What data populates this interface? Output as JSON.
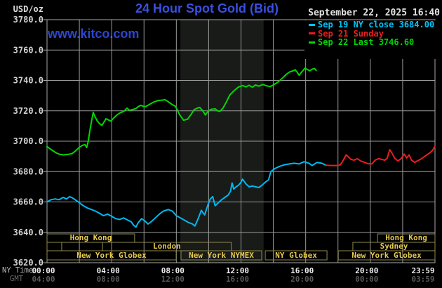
{
  "header": {
    "unit_label": "USD/oz",
    "title": "24 Hour Spot Gold (Bid)",
    "datetime": "September 22, 2025 16:40",
    "watermark": "www.kitco.com"
  },
  "legend": [
    {
      "label": "Sep 19 NY close 3684.00",
      "color": "#00c4fa"
    },
    {
      "label": "Sep 21 Sunday",
      "color": "#ef1c1c"
    },
    {
      "label": "Sep 22 Last 3746.60",
      "color": "#00d800"
    }
  ],
  "axes": {
    "y_ticks": [
      {
        "v": 3780,
        "label": "3780.0"
      },
      {
        "v": 3760,
        "label": "3760.0"
      },
      {
        "v": 3740,
        "label": "3740.0"
      },
      {
        "v": 3720,
        "label": "3720.0"
      },
      {
        "v": 3700,
        "label": "3700.0"
      },
      {
        "v": 3680,
        "label": "3680.0"
      },
      {
        "v": 3660,
        "label": "3660.0"
      },
      {
        "v": 3640,
        "label": "3640.0"
      },
      {
        "v": 3620,
        "label": "3620.0"
      }
    ],
    "x_ny": {
      "row_label": "NY Time",
      "ticks": [
        {
          "h": 0,
          "label": "00:00"
        },
        {
          "h": 4,
          "label": "04:00"
        },
        {
          "h": 8,
          "label": "08:00"
        },
        {
          "h": 12,
          "label": "12:00"
        },
        {
          "h": 16,
          "label": "16:00"
        },
        {
          "h": 20,
          "label": "20:00"
        },
        {
          "h": 24,
          "label": "23:59"
        }
      ]
    },
    "x_gmt": {
      "row_label": "GMT",
      "ticks": [
        {
          "h": 0,
          "label": "04:00"
        },
        {
          "h": 4,
          "label": "08:00"
        },
        {
          "h": 8,
          "label": "12:00"
        },
        {
          "h": 12,
          "label": "16:00"
        },
        {
          "h": 16,
          "label": "20:00"
        },
        {
          "h": 20,
          "label": "00:00"
        },
        {
          "h": 24,
          "label": "03:59"
        }
      ]
    }
  },
  "sessions": [
    {
      "row": 1,
      "h1": 0,
      "h2": 5.42,
      "label": "Hong Kong"
    },
    {
      "row": 1,
      "h1": 20.45,
      "h2": 24,
      "label": "Hong Kong"
    },
    {
      "row": 2,
      "h1": 0,
      "h2": 0.91,
      "label": ""
    },
    {
      "row": 2,
      "h1": 0.91,
      "h2": 3.43,
      "label": ""
    },
    {
      "row": 2,
      "h1": 3.43,
      "h2": 11.4,
      "label": "London"
    },
    {
      "row": 2,
      "h1": 18.92,
      "h2": 24,
      "label": "Sydney"
    },
    {
      "row": 3,
      "h1": 0,
      "h2": 7.99,
      "label": "New York Globex"
    },
    {
      "row": 3,
      "h1": 8.29,
      "h2": 13.28,
      "label": "New York NYMEX"
    },
    {
      "row": 3,
      "h1": 13.5,
      "h2": 17.32,
      "label": "NY Globex"
    },
    {
      "row": 3,
      "h1": 18.02,
      "h2": 24,
      "label": "New York Globex"
    }
  ],
  "chart_data": {
    "type": "line",
    "title": "24 Hour Spot Gold (Bid)",
    "ylabel": "USD/oz",
    "xlabel": "NY Time (hours)",
    "xlim": [
      0,
      24
    ],
    "ylim": [
      3620,
      3780
    ],
    "y_grid_step": 20,
    "x_grid_step_hours": 2,
    "grid": true,
    "nymex_band_hours": [
      8.25,
      13.4
    ],
    "colors": {
      "grid": "#9a9a9a",
      "band": "#191b19",
      "session_border": "#8f8a4c",
      "session_text": "#e6c94f",
      "tick_text": "#d2d2d2"
    },
    "series": [
      {
        "name": "Sep 19 NY close",
        "color": "#00b8f0",
        "points": [
          [
            0,
            3660
          ],
          [
            0.25,
            3661.5
          ],
          [
            0.5,
            3662
          ],
          [
            0.75,
            3661.5
          ],
          [
            1.0,
            3663
          ],
          [
            1.2,
            3662
          ],
          [
            1.4,
            3663.5
          ],
          [
            1.6,
            3662.5
          ],
          [
            1.8,
            3661
          ],
          [
            2.0,
            3659.5
          ],
          [
            2.25,
            3657.5
          ],
          [
            2.5,
            3656
          ],
          [
            2.75,
            3655
          ],
          [
            3.0,
            3654
          ],
          [
            3.25,
            3652.5
          ],
          [
            3.5,
            3651
          ],
          [
            3.75,
            3652
          ],
          [
            4.0,
            3650.5
          ],
          [
            4.25,
            3649
          ],
          [
            4.5,
            3648.5
          ],
          [
            4.75,
            3649.5
          ],
          [
            5.0,
            3648
          ],
          [
            5.2,
            3647
          ],
          [
            5.35,
            3644.8
          ],
          [
            5.5,
            3643.5
          ],
          [
            5.65,
            3646.5
          ],
          [
            5.85,
            3649
          ],
          [
            6.05,
            3647.5
          ],
          [
            6.25,
            3645.5
          ],
          [
            6.45,
            3647
          ],
          [
            6.7,
            3649.5
          ],
          [
            6.95,
            3652
          ],
          [
            7.2,
            3654
          ],
          [
            7.5,
            3655
          ],
          [
            7.75,
            3654
          ],
          [
            8.0,
            3651
          ],
          [
            8.25,
            3649.5
          ],
          [
            8.5,
            3648
          ],
          [
            8.75,
            3646.5
          ],
          [
            9.0,
            3645.5
          ],
          [
            9.15,
            3644.2
          ],
          [
            9.35,
            3649
          ],
          [
            9.55,
            3654.5
          ],
          [
            9.75,
            3651.5
          ],
          [
            9.95,
            3658
          ],
          [
            10.1,
            3662
          ],
          [
            10.25,
            3663.5
          ],
          [
            10.4,
            3657.5
          ],
          [
            10.6,
            3659.5
          ],
          [
            10.8,
            3661.5
          ],
          [
            11.0,
            3663
          ],
          [
            11.2,
            3664.5
          ],
          [
            11.35,
            3667
          ],
          [
            11.45,
            3672.5
          ],
          [
            11.55,
            3668.5
          ],
          [
            11.7,
            3670
          ],
          [
            11.85,
            3671
          ],
          [
            12.0,
            3673
          ],
          [
            12.1,
            3675
          ],
          [
            12.3,
            3672
          ],
          [
            12.5,
            3670
          ],
          [
            12.7,
            3670.5
          ],
          [
            12.9,
            3670
          ],
          [
            13.1,
            3669.5
          ],
          [
            13.3,
            3671
          ],
          [
            13.5,
            3673
          ],
          [
            13.7,
            3674.5
          ],
          [
            13.85,
            3680
          ],
          [
            14.1,
            3682
          ],
          [
            14.4,
            3683.5
          ],
          [
            14.7,
            3684.5
          ],
          [
            15.0,
            3685
          ],
          [
            15.3,
            3685.5
          ],
          [
            15.6,
            3685
          ],
          [
            15.9,
            3686.5
          ],
          [
            16.2,
            3685.5
          ],
          [
            16.4,
            3684
          ],
          [
            16.7,
            3686
          ],
          [
            17.0,
            3685.5
          ],
          [
            17.25,
            3684.2
          ]
        ]
      },
      {
        "name": "Sep 21 Sunday",
        "color": "#ef1c1c",
        "points": [
          [
            17.25,
            3684.2
          ],
          [
            17.6,
            3684
          ],
          [
            18.0,
            3684
          ],
          [
            18.15,
            3684.5
          ],
          [
            18.3,
            3687
          ],
          [
            18.5,
            3691
          ],
          [
            18.65,
            3689.5
          ],
          [
            18.8,
            3688
          ],
          [
            19.0,
            3687.5
          ],
          [
            19.2,
            3688.5
          ],
          [
            19.4,
            3687
          ],
          [
            19.6,
            3686.2
          ],
          [
            19.85,
            3685.2
          ],
          [
            20.1,
            3685
          ],
          [
            20.3,
            3687.5
          ],
          [
            20.5,
            3688.5
          ],
          [
            20.7,
            3688
          ],
          [
            20.9,
            3687.5
          ],
          [
            21.05,
            3689
          ],
          [
            21.2,
            3694.5
          ],
          [
            21.35,
            3692
          ],
          [
            21.5,
            3689
          ],
          [
            21.7,
            3687
          ],
          [
            21.9,
            3688.5
          ],
          [
            22.1,
            3691.5
          ],
          [
            22.25,
            3689
          ],
          [
            22.4,
            3691
          ],
          [
            22.55,
            3687.5
          ],
          [
            22.75,
            3686
          ],
          [
            22.9,
            3687
          ],
          [
            23.1,
            3688
          ],
          [
            23.3,
            3689.5
          ],
          [
            23.5,
            3691
          ],
          [
            23.7,
            3692.5
          ],
          [
            23.85,
            3694
          ],
          [
            23.98,
            3696.3
          ]
        ]
      },
      {
        "name": "Sep 22 Last",
        "color": "#00d800",
        "points": [
          [
            0,
            3696.5
          ],
          [
            0.25,
            3694.5
          ],
          [
            0.55,
            3692.4
          ],
          [
            0.8,
            3691.3
          ],
          [
            1.0,
            3691
          ],
          [
            1.3,
            3691.3
          ],
          [
            1.55,
            3691.8
          ],
          [
            1.75,
            3693.5
          ],
          [
            2.0,
            3696
          ],
          [
            2.2,
            3697.3
          ],
          [
            2.35,
            3697.8
          ],
          [
            2.45,
            3695.8
          ],
          [
            2.55,
            3700
          ],
          [
            2.65,
            3707
          ],
          [
            2.75,
            3713
          ],
          [
            2.86,
            3719
          ],
          [
            2.95,
            3716.5
          ],
          [
            3.1,
            3713.5
          ],
          [
            3.25,
            3711.5
          ],
          [
            3.4,
            3710.4
          ],
          [
            3.55,
            3713
          ],
          [
            3.65,
            3714.8
          ],
          [
            3.8,
            3714
          ],
          [
            3.95,
            3713.2
          ],
          [
            4.15,
            3715.5
          ],
          [
            4.35,
            3717.5
          ],
          [
            4.55,
            3718.8
          ],
          [
            4.75,
            3719.6
          ],
          [
            4.95,
            3721.8
          ],
          [
            5.1,
            3720.3
          ],
          [
            5.3,
            3720.8
          ],
          [
            5.5,
            3721.5
          ],
          [
            5.65,
            3722.8
          ],
          [
            5.8,
            3723.6
          ],
          [
            5.95,
            3723
          ],
          [
            6.1,
            3722.8
          ],
          [
            6.3,
            3724
          ],
          [
            6.5,
            3725.2
          ],
          [
            6.65,
            3726
          ],
          [
            6.9,
            3726.8
          ],
          [
            7.1,
            3727
          ],
          [
            7.3,
            3727.3
          ],
          [
            7.5,
            3726
          ],
          [
            7.7,
            3724.4
          ],
          [
            7.95,
            3722.9
          ],
          [
            8.2,
            3717.5
          ],
          [
            8.45,
            3713.8
          ],
          [
            8.7,
            3714.5
          ],
          [
            8.9,
            3717.5
          ],
          [
            9.1,
            3720.7
          ],
          [
            9.3,
            3721.8
          ],
          [
            9.45,
            3722.2
          ],
          [
            9.6,
            3720.5
          ],
          [
            9.8,
            3717.3
          ],
          [
            9.95,
            3719.5
          ],
          [
            10.15,
            3721
          ],
          [
            10.4,
            3721.3
          ],
          [
            10.55,
            3720
          ],
          [
            10.7,
            3719.6
          ],
          [
            10.9,
            3722
          ],
          [
            11.1,
            3726
          ],
          [
            11.3,
            3730.3
          ],
          [
            11.55,
            3733
          ],
          [
            11.85,
            3735.7
          ],
          [
            12.1,
            3736.6
          ],
          [
            12.3,
            3735.8
          ],
          [
            12.5,
            3736.8
          ],
          [
            12.7,
            3735.5
          ],
          [
            12.9,
            3737
          ],
          [
            13.1,
            3736.2
          ],
          [
            13.35,
            3737.3
          ],
          [
            13.6,
            3736.4
          ],
          [
            13.8,
            3736
          ],
          [
            14.0,
            3737
          ],
          [
            14.3,
            3739
          ],
          [
            14.55,
            3741.5
          ],
          [
            14.8,
            3744
          ],
          [
            15.0,
            3745.5
          ],
          [
            15.2,
            3746.3
          ],
          [
            15.35,
            3747
          ],
          [
            15.45,
            3745.8
          ],
          [
            15.6,
            3743.4
          ],
          [
            15.75,
            3745.5
          ],
          [
            15.95,
            3748
          ],
          [
            16.1,
            3747.2
          ],
          [
            16.25,
            3746.4
          ],
          [
            16.4,
            3747.4
          ],
          [
            16.55,
            3747.8
          ],
          [
            16.65,
            3746.6
          ]
        ]
      }
    ]
  }
}
